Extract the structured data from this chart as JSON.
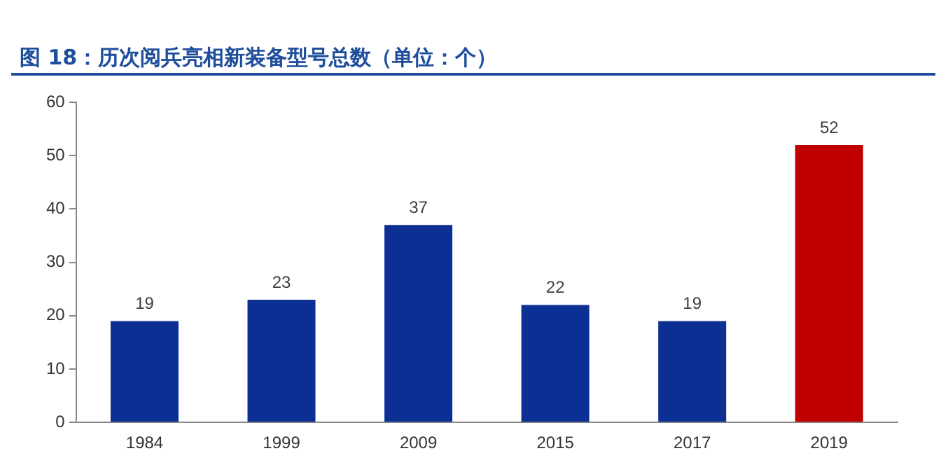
{
  "chart_data": {
    "type": "bar",
    "title": "图 18：历次阅兵亮相新装备型号总数（单位：个）",
    "categories": [
      "1984",
      "1999",
      "2009",
      "2015",
      "2017",
      "2019"
    ],
    "values": [
      19,
      23,
      37,
      22,
      19,
      52
    ],
    "colors": [
      "#0b2f93",
      "#0b2f93",
      "#0b2f93",
      "#0b2f93",
      "#0b2f93",
      "#c00000"
    ],
    "ylim": [
      0,
      60
    ],
    "yticks": [
      0,
      10,
      20,
      30,
      40,
      50,
      60
    ],
    "grid": false,
    "legend": false,
    "data_labels": true
  }
}
